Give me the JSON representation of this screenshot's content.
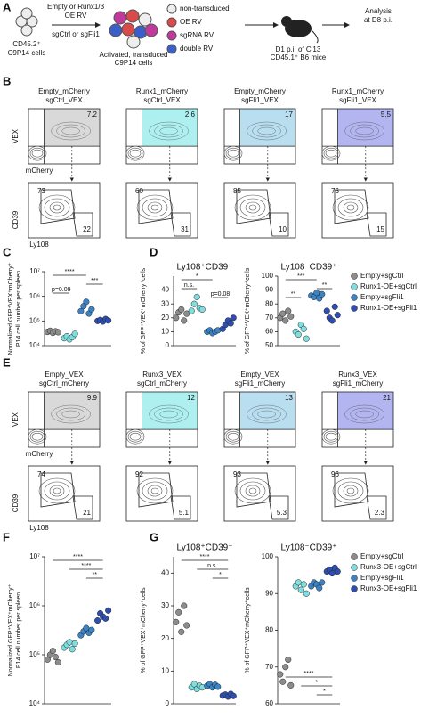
{
  "panels": [
    "A",
    "B",
    "C",
    "D",
    "E",
    "F",
    "G"
  ],
  "schematic": {
    "start": [
      "CD45.2⁺",
      "C9P14 cells"
    ],
    "treatment": [
      "Empty or Runx1/3",
      "OE RV",
      "sgCtrl or sgFli1"
    ],
    "activated": [
      "Activated, transduced",
      "C9P14 cells"
    ],
    "legend": [
      "non-transduced",
      "OE RV",
      "sgRNA RV",
      "double RV"
    ],
    "transfer": [
      "D1 p.i. of Cl13",
      "CD45.1⁺ B6 mice"
    ],
    "analysis": [
      "Analysis",
      "at D8 p.i."
    ]
  },
  "flow": [
    {
      "top_y": "VEX",
      "top_x": "mCherry",
      "bottom_y": "CD39",
      "bottom_x": "Ly108",
      "plots": [
        {
          "title": [
            "Empty_mCherry",
            "sgCtrl_VEX"
          ],
          "gate": 7.2,
          "color": "#d9d9d9",
          "upper": 73,
          "lower": 22
        },
        {
          "title": [
            "Runx1_mCherry",
            "sgCtrl_VEX"
          ],
          "gate": 2.6,
          "color": "#aef0f0",
          "upper": 60,
          "lower": 31
        },
        {
          "title": [
            "Empty_mCherry",
            "sgFli1_VEX"
          ],
          "gate": 17,
          "color": "#b9def0",
          "upper": 85,
          "lower": 10
        },
        {
          "title": [
            "Runx1_mCherry",
            "sgFli1_VEX"
          ],
          "gate": 5.5,
          "color": "#b3b5f0",
          "upper": 76,
          "lower": 15
        }
      ]
    },
    {
      "top_y": "VEX",
      "top_x": "mCherry",
      "bottom_y": "CD39",
      "bottom_x": "Ly108",
      "plots": [
        {
          "title": [
            "Empty_VEX",
            "sgCtrl_mCherry"
          ],
          "gate": 9.9,
          "color": "#d9d9d9",
          "upper": 74,
          "lower": 21
        },
        {
          "title": [
            "Runx3_VEX",
            "sgCtrl_mCherry"
          ],
          "gate": 12,
          "color": "#aef0f0",
          "upper": 92,
          "lower": 5.1
        },
        {
          "title": [
            "Empty_VEX",
            "sgFli1_mCherry"
          ],
          "gate": 13,
          "color": "#b9def0",
          "upper": 93,
          "lower": 5.3
        },
        {
          "title": [
            "Runx3_VEX",
            "sgFli1_mCherry"
          ],
          "gate": 21,
          "color": "#b3b5f0",
          "upper": 96,
          "lower": 2.3
        }
      ]
    }
  ],
  "chart_data": [
    {
      "type": "dot",
      "log": true,
      "y_label": [
        "Normalized GFP⁺VEX⁺mCherry⁺",
        "P14 cell number per spleen"
      ],
      "ylim": [
        10000,
        10000000
      ],
      "yticks": [
        {
          "value": 10000,
          "label": "10⁴"
        },
        {
          "value": 100000,
          "label": "10⁵"
        },
        {
          "value": 1000000,
          "label": "10⁶"
        },
        {
          "value": 10000000,
          "label": "10⁷"
        }
      ],
      "series": [
        {
          "color": "#8c8c8c",
          "values": [
            36000,
            40000,
            33000,
            38000,
            35000
          ]
        },
        {
          "color": "#7fdede",
          "values": [
            20000,
            24000,
            18000,
            22000,
            30000
          ]
        },
        {
          "color": "#3b83c4",
          "values": [
            250000,
            400000,
            600000,
            200000,
            300000
          ]
        },
        {
          "color": "#2f4fb0",
          "values": [
            100000,
            110000,
            95000,
            120000,
            105000
          ]
        }
      ],
      "annotations": [
        {
          "text": "****",
          "between": [
            0,
            2
          ]
        },
        {
          "text": "***",
          "between": [
            2,
            3
          ]
        },
        {
          "text": "p=0.09",
          "between": [
            0,
            1
          ]
        }
      ]
    },
    {
      "type": "dot",
      "title": "Ly108⁺CD39⁻",
      "y_label": [
        "% of GFP⁺VEX⁺mCherry⁺cells"
      ],
      "ylim": [
        0,
        50
      ],
      "yticks": [
        0,
        10,
        20,
        30,
        40
      ],
      "series": [
        {
          "color": "#8c8c8c",
          "values": [
            20,
            24,
            26,
            18,
            23
          ]
        },
        {
          "color": "#7fdede",
          "values": [
            25,
            30,
            35,
            27,
            26
          ]
        },
        {
          "color": "#3b83c4",
          "values": [
            10,
            11,
            9,
            10,
            11
          ]
        },
        {
          "color": "#2f4fb0",
          "values": [
            12,
            15,
            18,
            16,
            20
          ]
        }
      ],
      "annotations": [
        {
          "text": "*",
          "between": [
            0,
            2
          ]
        },
        {
          "text": "n.s.",
          "between": [
            0,
            1
          ]
        },
        {
          "text": "p=0.08",
          "between": [
            2,
            3
          ]
        }
      ]
    },
    {
      "type": "dot",
      "title": "Ly108⁻CD39⁺",
      "y_label": [
        "% of GFP⁺VEX⁺mCherry⁺cells"
      ],
      "ylim": [
        50,
        100
      ],
      "yticks": [
        50,
        60,
        70,
        80,
        90,
        100
      ],
      "series": [
        {
          "name": "Empty+sgCtrl",
          "color": "#8c8c8c",
          "values": [
            70,
            73,
            68,
            75,
            71
          ]
        },
        {
          "name": "Runx1-OE+sgCtrl",
          "color": "#7fdede",
          "values": [
            60,
            58,
            65,
            62,
            55
          ]
        },
        {
          "name": "Empty+sgFli1",
          "color": "#3b83c4",
          "values": [
            86,
            85,
            88,
            84,
            87
          ]
        },
        {
          "name": "Runx1-OE+sgFli1",
          "color": "#2f4fb0",
          "values": [
            75,
            70,
            68,
            78,
            72
          ]
        }
      ],
      "annotations": [
        {
          "text": "***",
          "between": [
            0,
            2
          ]
        },
        {
          "text": "**",
          "between": [
            2,
            3
          ]
        },
        {
          "text": "**",
          "between": [
            0,
            1
          ]
        }
      ]
    },
    {
      "type": "dot",
      "log": true,
      "y_label": [
        "Normalized GFP⁺VEX⁺mCherry⁺",
        "P14 cell number per spleen"
      ],
      "ylim": [
        10000,
        10000000
      ],
      "yticks": [
        {
          "value": 10000,
          "label": "10⁴"
        },
        {
          "value": 100000,
          "label": "10⁵"
        },
        {
          "value": 1000000,
          "label": "10⁶"
        },
        {
          "value": 10000000,
          "label": "10⁷"
        }
      ],
      "series": [
        {
          "color": "#8c8c8c",
          "values": [
            80000,
            100000,
            120000,
            90000,
            70000
          ]
        },
        {
          "color": "#7fdede",
          "values": [
            140000,
            160000,
            180000,
            130000,
            170000
          ]
        },
        {
          "color": "#3b83c4",
          "values": [
            250000,
            300000,
            350000,
            280000,
            320000
          ]
        },
        {
          "color": "#2f4fb0",
          "values": [
            500000,
            700000,
            600000,
            550000,
            800000
          ]
        }
      ],
      "annotations": [
        {
          "text": "****",
          "between": [
            0,
            3
          ]
        },
        {
          "text": "****",
          "between": [
            1,
            3
          ]
        },
        {
          "text": "**",
          "between": [
            2,
            3
          ]
        }
      ]
    },
    {
      "type": "dot",
      "title": "Ly108⁺CD39⁻",
      "y_label": [
        "% of GFP⁺VEX⁺mCherry⁺cells"
      ],
      "ylim": [
        0,
        45
      ],
      "yticks": [
        0,
        10,
        20,
        30,
        40
      ],
      "series": [
        {
          "color": "#8c8c8c",
          "values": [
            25,
            28,
            22,
            30,
            24
          ]
        },
        {
          "color": "#7fdede",
          "values": [
            5,
            6,
            4.5,
            5.5,
            5
          ]
        },
        {
          "color": "#3b83c4",
          "values": [
            5.5,
            6,
            5,
            5.8,
            5.2
          ]
        },
        {
          "color": "#2f4fb0",
          "values": [
            2.5,
            2.8,
            2.2,
            3,
            2.4
          ]
        }
      ],
      "annotations": [
        {
          "text": "****",
          "between": [
            0,
            3
          ]
        },
        {
          "text": "n.s.",
          "between": [
            1,
            3
          ]
        },
        {
          "text": "*",
          "between": [
            2,
            3
          ]
        }
      ]
    },
    {
      "type": "dot",
      "title": "Ly108⁻CD39⁺",
      "y_label": [
        "% of GFP⁺VEX⁺mCherry⁺cells"
      ],
      "ylim": [
        60,
        100
      ],
      "yticks": [
        60,
        70,
        80,
        90,
        100
      ],
      "annotation_side": "bottom",
      "series": [
        {
          "name": "Empty+sgCtrl",
          "color": "#8c8c8c",
          "values": [
            68,
            66,
            70,
            72,
            65
          ]
        },
        {
          "name": "Runx3-OE+sgCtrl",
          "color": "#7fdede",
          "values": [
            92,
            93,
            91,
            92.5,
            90
          ]
        },
        {
          "name": "Empty+sgFli1",
          "color": "#3b83c4",
          "values": [
            92,
            93,
            92.5,
            91.5,
            93
          ]
        },
        {
          "name": "Runx3-OE+sgFli1",
          "color": "#2f4fb0",
          "values": [
            96,
            96.5,
            95.5,
            97,
            96
          ]
        }
      ],
      "annotations": [
        {
          "text": "****",
          "between": [
            0,
            3
          ]
        },
        {
          "text": "*",
          "between": [
            1,
            3
          ]
        },
        {
          "text": "*",
          "between": [
            2,
            3
          ]
        }
      ]
    }
  ]
}
